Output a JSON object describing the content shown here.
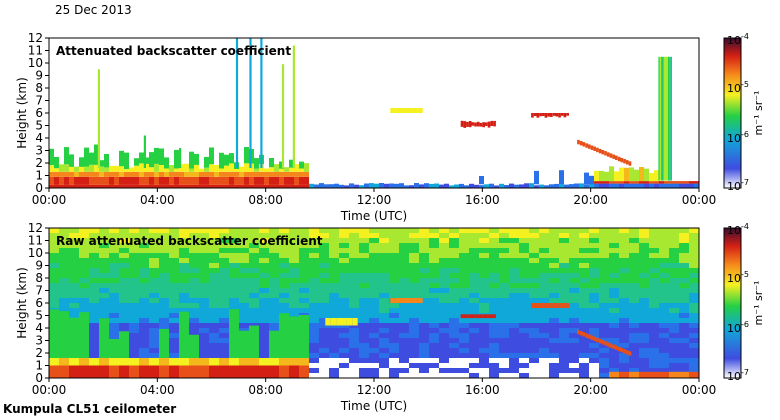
{
  "header": {
    "date": "25 Dec 2013"
  },
  "footer": {
    "instrument": "Kumpula CL51 ceilometer"
  },
  "chart_data": [
    {
      "type": "heatmap",
      "title": "Attenuated backscatter coefficient",
      "xlabel": "Time (UTC)",
      "ylabel": "Height (km)",
      "xlim": [
        0,
        24
      ],
      "ylim": [
        0,
        12
      ],
      "x_ticks": [
        "00:00",
        "04:00",
        "08:00",
        "12:00",
        "16:00",
        "20:00",
        "00:00"
      ],
      "y_ticks": [
        "0",
        "1",
        "2",
        "3",
        "4",
        "5",
        "6",
        "7",
        "8",
        "9",
        "10",
        "11",
        "12"
      ],
      "colorbar": {
        "unit_label": "m⁻¹ sr⁻¹",
        "scale": "log",
        "ticks": [
          {
            "base": "10",
            "exp": "-4"
          },
          {
            "base": "10",
            "exp": "-5"
          },
          {
            "base": "10",
            "exp": "-6"
          },
          {
            "base": "10",
            "exp": "-7"
          }
        ]
      },
      "features": [
        {
          "name": "boundary layer",
          "t": [
            0,
            9.5
          ],
          "h": [
            0,
            1.8
          ]
        },
        {
          "name": "boundary layer",
          "t": [
            20.5,
            24
          ],
          "h": [
            0,
            0.6
          ]
        },
        {
          "name": "cloud layer",
          "t": [
            15.2,
            16.5
          ],
          "h": [
            4.8,
            5.2
          ]
        },
        {
          "name": "cloud layer",
          "t": [
            17.8,
            19.2
          ],
          "h": [
            5.6,
            6.0
          ]
        },
        {
          "name": "descending cloud",
          "t": [
            19.5,
            21.5
          ],
          "h": [
            1.5,
            3.5
          ]
        }
      ]
    },
    {
      "type": "heatmap",
      "title": "Raw attenuated backscatter coefficient",
      "xlabel": "Time (UTC)",
      "ylabel": "Height (km)",
      "xlim": [
        0,
        24
      ],
      "ylim": [
        0,
        12
      ],
      "x_ticks": [
        "00:00",
        "04:00",
        "08:00",
        "12:00",
        "16:00",
        "20:00",
        "00:00"
      ],
      "y_ticks": [
        "0",
        "1",
        "2",
        "3",
        "4",
        "5",
        "6",
        "7",
        "8",
        "9",
        "10",
        "11",
        "12"
      ],
      "colorbar": {
        "unit_label": "m⁻¹ sr⁻¹",
        "scale": "log",
        "ticks": [
          {
            "base": "10",
            "exp": "-4"
          },
          {
            "base": "10",
            "exp": "-5"
          },
          {
            "base": "10",
            "exp": "-6"
          },
          {
            "base": "10",
            "exp": "-7"
          }
        ]
      }
    }
  ]
}
